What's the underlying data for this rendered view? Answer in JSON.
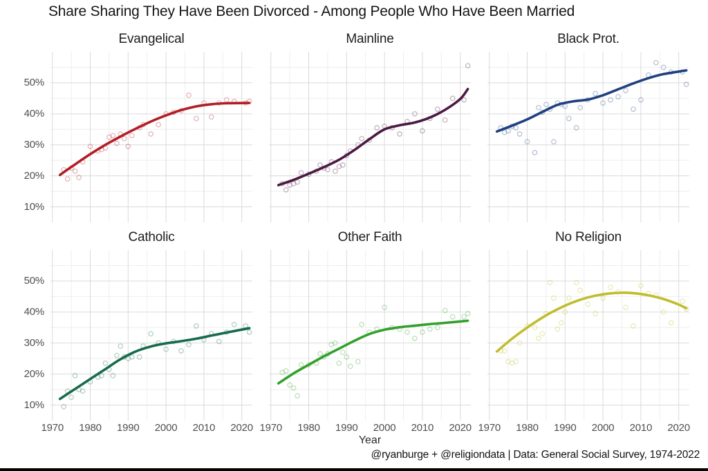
{
  "header": {
    "title": "Share Sharing They Have Been Divorced - Among People Who Have Been Married"
  },
  "axis": {
    "x_label": "Year"
  },
  "footer": {
    "caption": "@ryanburge + @religiondata | Data: General Social Survey, 1974-2022"
  },
  "colors": {
    "grid_major": "#dadada",
    "grid_minor": "#eeeeee",
    "tick_text": "#4f4f4f",
    "bottom_bar": "#000000"
  },
  "chart_data": {
    "type": "scatter+smooth-line",
    "title": "Share Sharing They Have Been Divorced - Among People Who Have Been Married",
    "xlabel": "Year",
    "ylabel": "",
    "x_domain": [
      1969.5,
      2022.8
    ],
    "y_domain": [
      5,
      60
    ],
    "x_major_ticks": [
      1970,
      1980,
      1990,
      2000,
      2010,
      2020
    ],
    "x_minor_ticks": [
      1975,
      1985,
      1995,
      2005,
      2015
    ],
    "y_major_ticks": [
      10,
      20,
      30,
      40,
      50
    ],
    "y_minor_ticks": [
      15,
      25,
      35,
      45,
      55
    ],
    "y_tick_suffix": "%",
    "grid": true,
    "legend": "none (facet titles)",
    "facets": [
      {
        "label": "Evangelical",
        "slug": "evangelical",
        "color": "#B11E26",
        "trend": [
          [
            1972,
            20.3
          ],
          [
            1976,
            23.7
          ],
          [
            1980,
            27.0
          ],
          [
            1984,
            30.0
          ],
          [
            1988,
            32.7
          ],
          [
            1992,
            35.2
          ],
          [
            1996,
            37.5
          ],
          [
            2000,
            39.5
          ],
          [
            2004,
            41.2
          ],
          [
            2008,
            42.4
          ],
          [
            2012,
            43.1
          ],
          [
            2016,
            43.4
          ],
          [
            2022,
            43.5
          ]
        ],
        "points": [
          [
            1973,
            22
          ],
          [
            1974,
            19
          ],
          [
            1975,
            22.5
          ],
          [
            1976,
            21.5
          ],
          [
            1977,
            19.5
          ],
          [
            1978,
            24.5
          ],
          [
            1980,
            29.5
          ],
          [
            1982,
            28
          ],
          [
            1983,
            28.5
          ],
          [
            1984,
            29
          ],
          [
            1985,
            32.5
          ],
          [
            1986,
            33
          ],
          [
            1987,
            30.5
          ],
          [
            1988,
            33.5
          ],
          [
            1989,
            32
          ],
          [
            1990,
            29.5
          ],
          [
            1991,
            33
          ],
          [
            1993,
            35.5
          ],
          [
            1994,
            36.5
          ],
          [
            1996,
            33.5
          ],
          [
            1998,
            36.5
          ],
          [
            2000,
            40
          ],
          [
            2002,
            40.5
          ],
          [
            2004,
            41
          ],
          [
            2006,
            46
          ],
          [
            2008,
            38.5
          ],
          [
            2010,
            43.5
          ],
          [
            2012,
            39
          ],
          [
            2014,
            43.5
          ],
          [
            2016,
            44.5
          ],
          [
            2018,
            44
          ],
          [
            2021,
            43.5
          ],
          [
            2022,
            44
          ]
        ]
      },
      {
        "label": "Mainline",
        "slug": "mainline",
        "color": "#4B1943",
        "trend": [
          [
            1972,
            17.0
          ],
          [
            1976,
            18.7
          ],
          [
            1980,
            20.7
          ],
          [
            1984,
            22.8
          ],
          [
            1988,
            25.2
          ],
          [
            1992,
            28.3
          ],
          [
            1996,
            31.8
          ],
          [
            2000,
            35.0
          ],
          [
            2004,
            36.3
          ],
          [
            2008,
            37.2
          ],
          [
            2012,
            38.8
          ],
          [
            2016,
            41.3
          ],
          [
            2020,
            44.8
          ],
          [
            2022,
            48.0
          ]
        ],
        "points": [
          [
            1973,
            17.5
          ],
          [
            1974,
            15.5
          ],
          [
            1975,
            17
          ],
          [
            1976,
            17.5
          ],
          [
            1977,
            18
          ],
          [
            1978,
            21
          ],
          [
            1980,
            20.5
          ],
          [
            1982,
            21.5
          ],
          [
            1983,
            23.5
          ],
          [
            1984,
            22.5
          ],
          [
            1985,
            22
          ],
          [
            1986,
            24.5
          ],
          [
            1987,
            21.5
          ],
          [
            1988,
            23
          ],
          [
            1989,
            23.5
          ],
          [
            1990,
            26.5
          ],
          [
            1991,
            28
          ],
          [
            1993,
            30
          ],
          [
            1994,
            32
          ],
          [
            1996,
            31.5
          ],
          [
            1998,
            35.5
          ],
          [
            2000,
            36
          ],
          [
            2002,
            35.5
          ],
          [
            2004,
            33.5
          ],
          [
            2006,
            37.5
          ],
          [
            2008,
            40
          ],
          [
            2010,
            34.5
          ],
          [
            2012,
            38.5
          ],
          [
            2014,
            41.5
          ],
          [
            2016,
            38
          ],
          [
            2018,
            45
          ],
          [
            2021,
            44.5
          ],
          [
            2022,
            55.5
          ]
        ]
      },
      {
        "label": "Black Prot.",
        "slug": "black-prot",
        "color": "#1F3F7F",
        "trend": [
          [
            1972,
            34.3
          ],
          [
            1976,
            36.2
          ],
          [
            1980,
            38.2
          ],
          [
            1984,
            40.6
          ],
          [
            1988,
            42.9
          ],
          [
            1992,
            44.0
          ],
          [
            1996,
            44.6
          ],
          [
            2000,
            46.0
          ],
          [
            2004,
            47.9
          ],
          [
            2008,
            49.8
          ],
          [
            2012,
            51.5
          ],
          [
            2016,
            52.8
          ],
          [
            2022,
            54.0
          ]
        ],
        "points": [
          [
            1973,
            35.5
          ],
          [
            1974,
            34
          ],
          [
            1975,
            34.5
          ],
          [
            1976,
            36
          ],
          [
            1977,
            35.5
          ],
          [
            1978,
            33.5
          ],
          [
            1980,
            31
          ],
          [
            1982,
            27.5
          ],
          [
            1983,
            42
          ],
          [
            1984,
            40.5
          ],
          [
            1985,
            43
          ],
          [
            1986,
            41.5
          ],
          [
            1987,
            31
          ],
          [
            1988,
            43.5
          ],
          [
            1989,
            43
          ],
          [
            1990,
            42.5
          ],
          [
            1991,
            38.5
          ],
          [
            1993,
            35.5
          ],
          [
            1994,
            42
          ],
          [
            1996,
            44.5
          ],
          [
            1998,
            46.5
          ],
          [
            2000,
            43.5
          ],
          [
            2002,
            44.5
          ],
          [
            2004,
            45.5
          ],
          [
            2006,
            47.5
          ],
          [
            2008,
            41.5
          ],
          [
            2010,
            44.5
          ],
          [
            2012,
            52.5
          ],
          [
            2014,
            56.5
          ],
          [
            2016,
            55
          ],
          [
            2018,
            53.5
          ],
          [
            2021,
            53.5
          ],
          [
            2022,
            49.5
          ]
        ]
      },
      {
        "label": "Catholic",
        "slug": "catholic",
        "color": "#166B4A",
        "trend": [
          [
            1972,
            12.0
          ],
          [
            1976,
            15.2
          ],
          [
            1980,
            18.4
          ],
          [
            1984,
            21.6
          ],
          [
            1988,
            24.8
          ],
          [
            1992,
            27.3
          ],
          [
            1996,
            28.9
          ],
          [
            2000,
            29.9
          ],
          [
            2004,
            30.6
          ],
          [
            2008,
            31.4
          ],
          [
            2012,
            32.4
          ],
          [
            2016,
            33.4
          ],
          [
            2022,
            34.8
          ]
        ],
        "points": [
          [
            1973,
            9.5
          ],
          [
            1974,
            14.5
          ],
          [
            1975,
            12.5
          ],
          [
            1976,
            19.5
          ],
          [
            1977,
            15
          ],
          [
            1978,
            14.5
          ],
          [
            1980,
            17.5
          ],
          [
            1982,
            19
          ],
          [
            1983,
            19.5
          ],
          [
            1984,
            23.5
          ],
          [
            1985,
            21.5
          ],
          [
            1986,
            19.5
          ],
          [
            1987,
            26
          ],
          [
            1988,
            29
          ],
          [
            1989,
            25.5
          ],
          [
            1990,
            25
          ],
          [
            1991,
            25.5
          ],
          [
            1993,
            25.5
          ],
          [
            1994,
            29
          ],
          [
            1996,
            33
          ],
          [
            1998,
            30
          ],
          [
            2000,
            28
          ],
          [
            2002,
            30.5
          ],
          [
            2004,
            27.5
          ],
          [
            2006,
            29.5
          ],
          [
            2008,
            35.5
          ],
          [
            2010,
            31
          ],
          [
            2012,
            33
          ],
          [
            2014,
            30.5
          ],
          [
            2016,
            33.5
          ],
          [
            2018,
            36
          ],
          [
            2021,
            35.5
          ],
          [
            2022,
            33.5
          ]
        ]
      },
      {
        "label": "Other Faith",
        "slug": "other-faith",
        "color": "#33A02C",
        "trend": [
          [
            1972,
            17.0
          ],
          [
            1976,
            20.2
          ],
          [
            1980,
            23.0
          ],
          [
            1984,
            25.7
          ],
          [
            1988,
            28.2
          ],
          [
            1992,
            30.7
          ],
          [
            1996,
            32.9
          ],
          [
            2000,
            34.3
          ],
          [
            2004,
            35.1
          ],
          [
            2008,
            35.6
          ],
          [
            2012,
            36.1
          ],
          [
            2016,
            36.5
          ],
          [
            2022,
            37.2
          ]
        ],
        "points": [
          [
            1973,
            20.5
          ],
          [
            1974,
            21
          ],
          [
            1975,
            16.5
          ],
          [
            1976,
            15.5
          ],
          [
            1977,
            13
          ],
          [
            1978,
            23
          ],
          [
            1980,
            23
          ],
          [
            1982,
            23.5
          ],
          [
            1983,
            26.5
          ],
          [
            1984,
            25.5
          ],
          [
            1985,
            26.5
          ],
          [
            1986,
            29.5
          ],
          [
            1987,
            30
          ],
          [
            1988,
            23.5
          ],
          [
            1989,
            27
          ],
          [
            1990,
            25.5
          ],
          [
            1991,
            22.5
          ],
          [
            1993,
            24
          ],
          [
            1994,
            36
          ],
          [
            1996,
            33.5
          ],
          [
            1998,
            34.5
          ],
          [
            2000,
            41.5
          ],
          [
            2002,
            35
          ],
          [
            2004,
            34.5
          ],
          [
            2006,
            33.5
          ],
          [
            2008,
            31.5
          ],
          [
            2010,
            33.5
          ],
          [
            2012,
            34.5
          ],
          [
            2014,
            35
          ],
          [
            2016,
            40.5
          ],
          [
            2018,
            38.5
          ],
          [
            2021,
            38.5
          ],
          [
            2022,
            39.5
          ]
        ]
      },
      {
        "label": "No Religion",
        "slug": "no-religion",
        "color": "#BFBD2E",
        "trend": [
          [
            1972,
            27.3
          ],
          [
            1976,
            31.4
          ],
          [
            1980,
            35.0
          ],
          [
            1984,
            38.2
          ],
          [
            1988,
            40.9
          ],
          [
            1992,
            43.1
          ],
          [
            1996,
            44.7
          ],
          [
            2000,
            45.7
          ],
          [
            2004,
            46.2
          ],
          [
            2008,
            46.1
          ],
          [
            2012,
            45.4
          ],
          [
            2016,
            44.2
          ],
          [
            2020,
            42.4
          ],
          [
            2022,
            41.2
          ]
        ],
        "points": [
          [
            1973,
            27.5
          ],
          [
            1974,
            27.5
          ],
          [
            1975,
            24
          ],
          [
            1976,
            23.5
          ],
          [
            1977,
            24
          ],
          [
            1978,
            30
          ],
          [
            1980,
            35.5
          ],
          [
            1982,
            35
          ],
          [
            1983,
            31.5
          ],
          [
            1984,
            33
          ],
          [
            1985,
            39.5
          ],
          [
            1986,
            49.5
          ],
          [
            1987,
            44.5
          ],
          [
            1988,
            34.5
          ],
          [
            1989,
            36.5
          ],
          [
            1990,
            40
          ],
          [
            1991,
            44.5
          ],
          [
            1993,
            49.5
          ],
          [
            1994,
            47
          ],
          [
            1996,
            42.5
          ],
          [
            1998,
            39.5
          ],
          [
            2000,
            44.5
          ],
          [
            2002,
            48
          ],
          [
            2004,
            46.5
          ],
          [
            2006,
            41.5
          ],
          [
            2008,
            35.5
          ],
          [
            2010,
            48.5
          ],
          [
            2012,
            46
          ],
          [
            2014,
            45.5
          ],
          [
            2016,
            40
          ],
          [
            2018,
            36.5
          ],
          [
            2021,
            43.5
          ],
          [
            2022,
            41
          ]
        ]
      }
    ]
  }
}
